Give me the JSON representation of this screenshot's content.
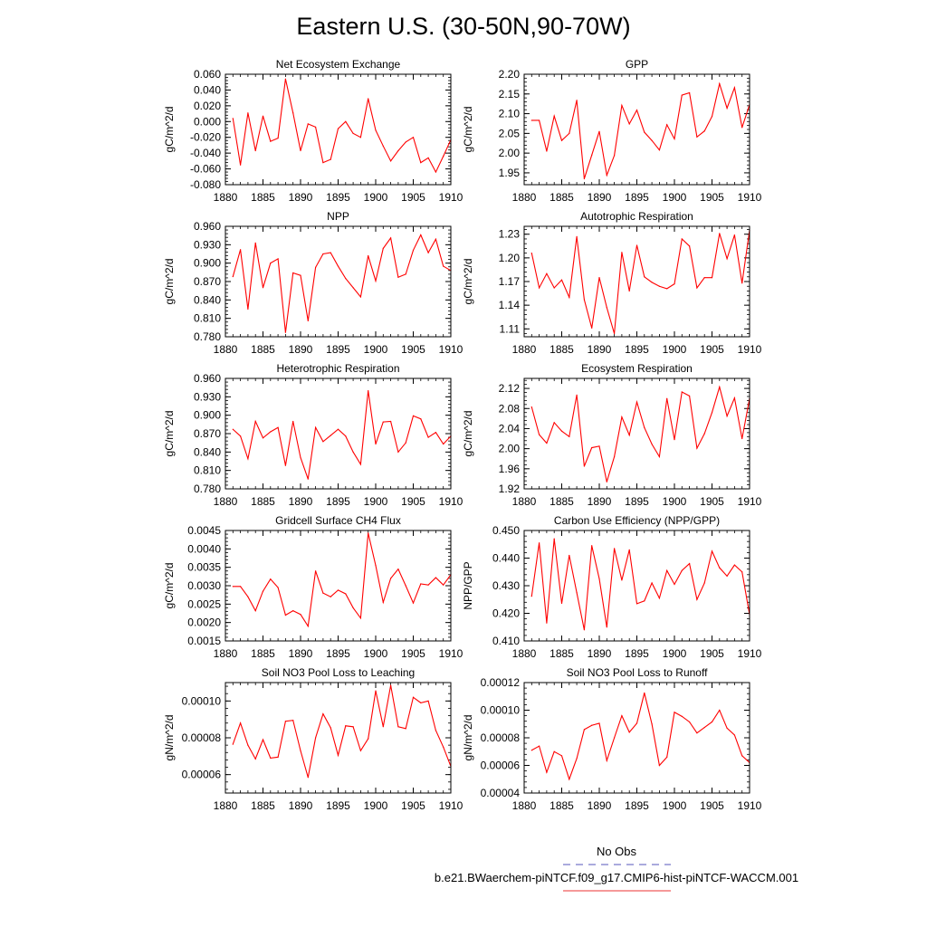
{
  "title": "Eastern U.S. (30-50N,90-70W)",
  "legend": {
    "entries": [
      {
        "label": "No Obs",
        "color": "#5555bb",
        "dash": true
      },
      {
        "label": "b.e21.BWaerchem-piNTCF.f09_g17.CMIP6-hist-piNTCF-WACCM.001",
        "color": "#ee3333",
        "dash": false
      }
    ]
  },
  "chart_data": [
    {
      "type": "line",
      "title": "Net Ecosystem Exchange",
      "ylabel": "gC/m^2/d",
      "xlim": [
        1880,
        1910
      ],
      "ylim": [
        -0.08,
        0.06
      ],
      "line_color": "#ff0000",
      "xticks": [
        1880,
        1885,
        1890,
        1895,
        1900,
        1905,
        1910
      ],
      "yticks": [
        -0.08,
        -0.06,
        -0.04,
        -0.02,
        0.0,
        0.02,
        0.04,
        0.06
      ],
      "ytick_labels": [
        "-0.080",
        "-0.060",
        "-0.040",
        "-0.020",
        "0.000",
        "0.020",
        "0.040",
        "0.060"
      ],
      "x": [
        1881,
        1882,
        1883,
        1884,
        1885,
        1886,
        1887,
        1888,
        1889,
        1890,
        1891,
        1892,
        1893,
        1894,
        1895,
        1896,
        1897,
        1898,
        1899,
        1900,
        1901,
        1902,
        1903,
        1904,
        1905,
        1906,
        1907,
        1908,
        1909,
        1910
      ],
      "values": [
        0.004,
        -0.055,
        0.011,
        -0.037,
        0.007,
        -0.025,
        -0.021,
        0.054,
        0.011,
        -0.037,
        -0.003,
        -0.007,
        -0.052,
        -0.048,
        -0.009,
        0.0,
        -0.015,
        -0.02,
        0.029,
        -0.011,
        -0.031,
        -0.05,
        -0.037,
        -0.026,
        -0.02,
        -0.052,
        -0.046,
        -0.064,
        -0.044,
        -0.023
      ]
    },
    {
      "type": "line",
      "title": "GPP",
      "ylabel": "gC/m^2/d",
      "xlim": [
        1880,
        1910
      ],
      "ylim": [
        1.92,
        2.2
      ],
      "line_color": "#ff0000",
      "xticks": [
        1880,
        1885,
        1890,
        1895,
        1900,
        1905,
        1910
      ],
      "yticks": [
        1.95,
        2.0,
        2.05,
        2.1,
        2.15,
        2.2
      ],
      "ytick_labels": [
        "1.95",
        "2.00",
        "2.05",
        "2.10",
        "2.15",
        "2.20"
      ],
      "x": [
        1881,
        1882,
        1883,
        1884,
        1885,
        1886,
        1887,
        1888,
        1889,
        1890,
        1891,
        1892,
        1893,
        1894,
        1895,
        1896,
        1897,
        1898,
        1899,
        1900,
        1901,
        1902,
        1903,
        1904,
        1905,
        1906,
        1907,
        1908,
        1909,
        1910
      ],
      "values": [
        2.083,
        2.083,
        2.005,
        2.094,
        2.032,
        2.05,
        2.134,
        1.935,
        1.995,
        2.055,
        1.944,
        1.994,
        2.121,
        2.074,
        2.109,
        2.053,
        2.032,
        2.008,
        2.072,
        2.036,
        2.147,
        2.153,
        2.041,
        2.056,
        2.093,
        2.176,
        2.114,
        2.166,
        2.065,
        2.123
      ]
    },
    {
      "type": "line",
      "title": "NPP",
      "ylabel": "gC/m^2/d",
      "xlim": [
        1880,
        1910
      ],
      "ylim": [
        0.78,
        0.96
      ],
      "line_color": "#ff0000",
      "xticks": [
        1880,
        1885,
        1890,
        1895,
        1900,
        1905,
        1910
      ],
      "yticks": [
        0.78,
        0.81,
        0.84,
        0.87,
        0.9,
        0.93,
        0.96
      ],
      "ytick_labels": [
        "0.780",
        "0.810",
        "0.840",
        "0.870",
        "0.900",
        "0.930",
        "0.960"
      ],
      "x": [
        1881,
        1882,
        1883,
        1884,
        1885,
        1886,
        1887,
        1888,
        1889,
        1890,
        1891,
        1892,
        1893,
        1894,
        1895,
        1896,
        1897,
        1898,
        1899,
        1900,
        1901,
        1902,
        1903,
        1904,
        1905,
        1906,
        1907,
        1908,
        1909,
        1910
      ],
      "values": [
        0.878,
        0.922,
        0.825,
        0.933,
        0.86,
        0.9,
        0.907,
        0.787,
        0.884,
        0.88,
        0.806,
        0.893,
        0.915,
        0.917,
        0.895,
        0.875,
        0.86,
        0.845,
        0.912,
        0.871,
        0.924,
        0.941,
        0.877,
        0.882,
        0.921,
        0.946,
        0.917,
        0.939,
        0.895,
        0.888
      ]
    },
    {
      "type": "line",
      "title": "Autotrophic Respiration",
      "ylabel": "gC/m^2/d",
      "xlim": [
        1880,
        1910
      ],
      "ylim": [
        1.1,
        1.24
      ],
      "line_color": "#ff0000",
      "xticks": [
        1880,
        1885,
        1890,
        1895,
        1900,
        1905,
        1910
      ],
      "yticks": [
        1.11,
        1.14,
        1.17,
        1.2,
        1.23
      ],
      "ytick_labels": [
        "1.11",
        "1.14",
        "1.17",
        "1.20",
        "1.23"
      ],
      "x": [
        1881,
        1882,
        1883,
        1884,
        1885,
        1886,
        1887,
        1888,
        1889,
        1890,
        1891,
        1892,
        1893,
        1894,
        1895,
        1896,
        1897,
        1898,
        1899,
        1900,
        1901,
        1902,
        1903,
        1904,
        1905,
        1906,
        1907,
        1908,
        1909,
        1910
      ],
      "values": [
        1.206,
        1.162,
        1.18,
        1.162,
        1.172,
        1.15,
        1.227,
        1.147,
        1.111,
        1.175,
        1.137,
        1.104,
        1.207,
        1.158,
        1.216,
        1.176,
        1.169,
        1.164,
        1.161,
        1.167,
        1.224,
        1.215,
        1.162,
        1.175,
        1.175,
        1.231,
        1.199,
        1.229,
        1.168,
        1.235
      ]
    },
    {
      "type": "line",
      "title": "Heterotrophic Respiration",
      "ylabel": "gC/m^2/d",
      "xlim": [
        1880,
        1910
      ],
      "ylim": [
        0.78,
        0.96
      ],
      "line_color": "#ff0000",
      "xticks": [
        1880,
        1885,
        1890,
        1895,
        1900,
        1905,
        1910
      ],
      "yticks": [
        0.78,
        0.81,
        0.84,
        0.87,
        0.9,
        0.93,
        0.96
      ],
      "ytick_labels": [
        "0.780",
        "0.810",
        "0.840",
        "0.870",
        "0.900",
        "0.930",
        "0.960"
      ],
      "x": [
        1881,
        1882,
        1883,
        1884,
        1885,
        1886,
        1887,
        1888,
        1889,
        1890,
        1891,
        1892,
        1893,
        1894,
        1895,
        1896,
        1897,
        1898,
        1899,
        1900,
        1901,
        1902,
        1903,
        1904,
        1905,
        1906,
        1907,
        1908,
        1909,
        1910
      ],
      "values": [
        0.877,
        0.866,
        0.829,
        0.89,
        0.863,
        0.873,
        0.88,
        0.818,
        0.89,
        0.831,
        0.796,
        0.88,
        0.857,
        0.867,
        0.877,
        0.866,
        0.84,
        0.82,
        0.94,
        0.853,
        0.889,
        0.89,
        0.84,
        0.855,
        0.899,
        0.894,
        0.864,
        0.872,
        0.853,
        0.866
      ]
    },
    {
      "type": "line",
      "title": "Ecosystem Respiration",
      "ylabel": "gC/m^2/d",
      "xlim": [
        1880,
        1910
      ],
      "ylim": [
        1.92,
        2.14
      ],
      "line_color": "#ff0000",
      "xticks": [
        1880,
        1885,
        1890,
        1895,
        1900,
        1905,
        1910
      ],
      "yticks": [
        1.92,
        1.96,
        2.0,
        2.04,
        2.08,
        2.12
      ],
      "ytick_labels": [
        "1.92",
        "1.96",
        "2.00",
        "2.04",
        "2.08",
        "2.12"
      ],
      "x": [
        1881,
        1882,
        1883,
        1884,
        1885,
        1886,
        1887,
        1888,
        1889,
        1890,
        1891,
        1892,
        1893,
        1894,
        1895,
        1896,
        1897,
        1898,
        1899,
        1900,
        1901,
        1902,
        1903,
        1904,
        1905,
        1906,
        1907,
        1908,
        1909,
        1910
      ],
      "values": [
        2.083,
        2.028,
        2.011,
        2.052,
        2.035,
        2.024,
        2.107,
        1.965,
        2.002,
        2.005,
        1.934,
        1.984,
        2.063,
        2.027,
        2.093,
        2.042,
        2.009,
        1.984,
        2.1,
        2.018,
        2.113,
        2.105,
        2.001,
        2.03,
        2.072,
        2.123,
        2.065,
        2.101,
        2.02,
        2.1
      ]
    },
    {
      "type": "line",
      "title": "Gridcell Surface CH4 Flux",
      "ylabel": "gC/m^2/d",
      "xlim": [
        1880,
        1910
      ],
      "ylim": [
        0.0015,
        0.0045
      ],
      "line_color": "#ff0000",
      "xticks": [
        1880,
        1885,
        1890,
        1895,
        1900,
        1905,
        1910
      ],
      "yticks": [
        0.0015,
        0.002,
        0.0025,
        0.003,
        0.0035,
        0.004,
        0.0045
      ],
      "ytick_labels": [
        "0.0015",
        "0.0020",
        "0.0025",
        "0.0030",
        "0.0035",
        "0.0040",
        "0.0045"
      ],
      "x": [
        1881,
        1882,
        1883,
        1884,
        1885,
        1886,
        1887,
        1888,
        1889,
        1890,
        1891,
        1892,
        1893,
        1894,
        1895,
        1896,
        1897,
        1898,
        1899,
        1900,
        1901,
        1902,
        1903,
        1904,
        1905,
        1906,
        1907,
        1908,
        1909,
        1910
      ],
      "values": [
        0.00298,
        0.00298,
        0.0027,
        0.00232,
        0.00285,
        0.00318,
        0.00295,
        0.0022,
        0.00232,
        0.00222,
        0.0019,
        0.0034,
        0.0028,
        0.0027,
        0.00288,
        0.00278,
        0.0024,
        0.00212,
        0.00443,
        0.00355,
        0.00255,
        0.0032,
        0.00345,
        0.003,
        0.00253,
        0.00305,
        0.00302,
        0.00322,
        0.00302,
        0.0033
      ]
    },
    {
      "type": "line",
      "title": "Carbon Use Efficiency (NPP/GPP)",
      "ylabel": "NPP/GPP",
      "xlim": [
        1880,
        1910
      ],
      "ylim": [
        0.41,
        0.45
      ],
      "line_color": "#ff0000",
      "xticks": [
        1880,
        1885,
        1890,
        1895,
        1900,
        1905,
        1910
      ],
      "yticks": [
        0.41,
        0.42,
        0.43,
        0.44,
        0.45
      ],
      "ytick_labels": [
        "0.410",
        "0.420",
        "0.430",
        "0.440",
        "0.450"
      ],
      "x": [
        1881,
        1882,
        1883,
        1884,
        1885,
        1886,
        1887,
        1888,
        1889,
        1890,
        1891,
        1892,
        1893,
        1894,
        1895,
        1896,
        1897,
        1898,
        1899,
        1900,
        1901,
        1902,
        1903,
        1904,
        1905,
        1906,
        1907,
        1908,
        1909,
        1910
      ],
      "values": [
        0.4262,
        0.4455,
        0.4165,
        0.447,
        0.4236,
        0.441,
        0.4275,
        0.414,
        0.4445,
        0.4325,
        0.415,
        0.4435,
        0.432,
        0.443,
        0.4235,
        0.4245,
        0.431,
        0.4255,
        0.4355,
        0.4305,
        0.4355,
        0.438,
        0.425,
        0.431,
        0.4425,
        0.4365,
        0.4335,
        0.4375,
        0.435,
        0.4195
      ]
    },
    {
      "type": "line",
      "title": "Soil NO3 Pool Loss to Leaching",
      "ylabel": "gN/m^2/d",
      "xlim": [
        1880,
        1910
      ],
      "ylim": [
        5e-05,
        0.00011
      ],
      "line_color": "#ff0000",
      "xticks": [
        1880,
        1885,
        1890,
        1895,
        1900,
        1905,
        1910
      ],
      "yticks": [
        6e-05,
        8e-05,
        0.0001
      ],
      "ytick_labels": [
        "0.00006",
        "0.00008",
        "0.00010"
      ],
      "x": [
        1881,
        1882,
        1883,
        1884,
        1885,
        1886,
        1887,
        1888,
        1889,
        1890,
        1891,
        1892,
        1893,
        1894,
        1895,
        1896,
        1897,
        1898,
        1899,
        1900,
        1901,
        1902,
        1903,
        1904,
        1905,
        1906,
        1907,
        1908,
        1909,
        1910
      ],
      "values": [
        7.65e-05,
        8.8e-05,
        7.6e-05,
        6.85e-05,
        7.9e-05,
        6.9e-05,
        6.95e-05,
        8.9e-05,
        8.95e-05,
        7.3e-05,
        5.85e-05,
        8e-05,
        9.3e-05,
        8.55e-05,
        7.05e-05,
        8.65e-05,
        8.6e-05,
        7.3e-05,
        7.95e-05,
        0.0001055,
        8.6e-05,
        0.0001085,
        8.6e-05,
        8.5e-05,
        0.000102,
        9.9e-05,
        0.0001,
        8.4e-05,
        7.5e-05,
        6.45e-05
      ]
    },
    {
      "type": "line",
      "title": "Soil NO3 Pool Loss to Runoff",
      "ylabel": "gN/m^2/d",
      "xlim": [
        1880,
        1910
      ],
      "ylim": [
        4e-05,
        0.00012
      ],
      "line_color": "#ff0000",
      "xticks": [
        1880,
        1885,
        1890,
        1895,
        1900,
        1905,
        1910
      ],
      "yticks": [
        4e-05,
        6e-05,
        8e-05,
        0.0001,
        0.00012
      ],
      "ytick_labels": [
        "0.00004",
        "0.00006",
        "0.00008",
        "0.00010",
        "0.00012"
      ],
      "x": [
        1881,
        1882,
        1883,
        1884,
        1885,
        1886,
        1887,
        1888,
        1889,
        1890,
        1891,
        1892,
        1893,
        1894,
        1895,
        1896,
        1897,
        1898,
        1899,
        1900,
        1901,
        1902,
        1903,
        1904,
        1905,
        1906,
        1907,
        1908,
        1909,
        1910
      ],
      "values": [
        7.1e-05,
        7.4e-05,
        5.5e-05,
        7e-05,
        6.7e-05,
        5e-05,
        6.5e-05,
        8.6e-05,
        8.9e-05,
        9.05e-05,
        6.35e-05,
        8e-05,
        9.6e-05,
        8.4e-05,
        9.05e-05,
        0.0001125,
        9e-05,
        6e-05,
        6.6e-05,
        9.85e-05,
        9.55e-05,
        9.15e-05,
        8.35e-05,
        8.75e-05,
        9.15e-05,
        0.0001,
        8.7e-05,
        8.2e-05,
        6.7e-05,
        6.2e-05
      ]
    }
  ]
}
